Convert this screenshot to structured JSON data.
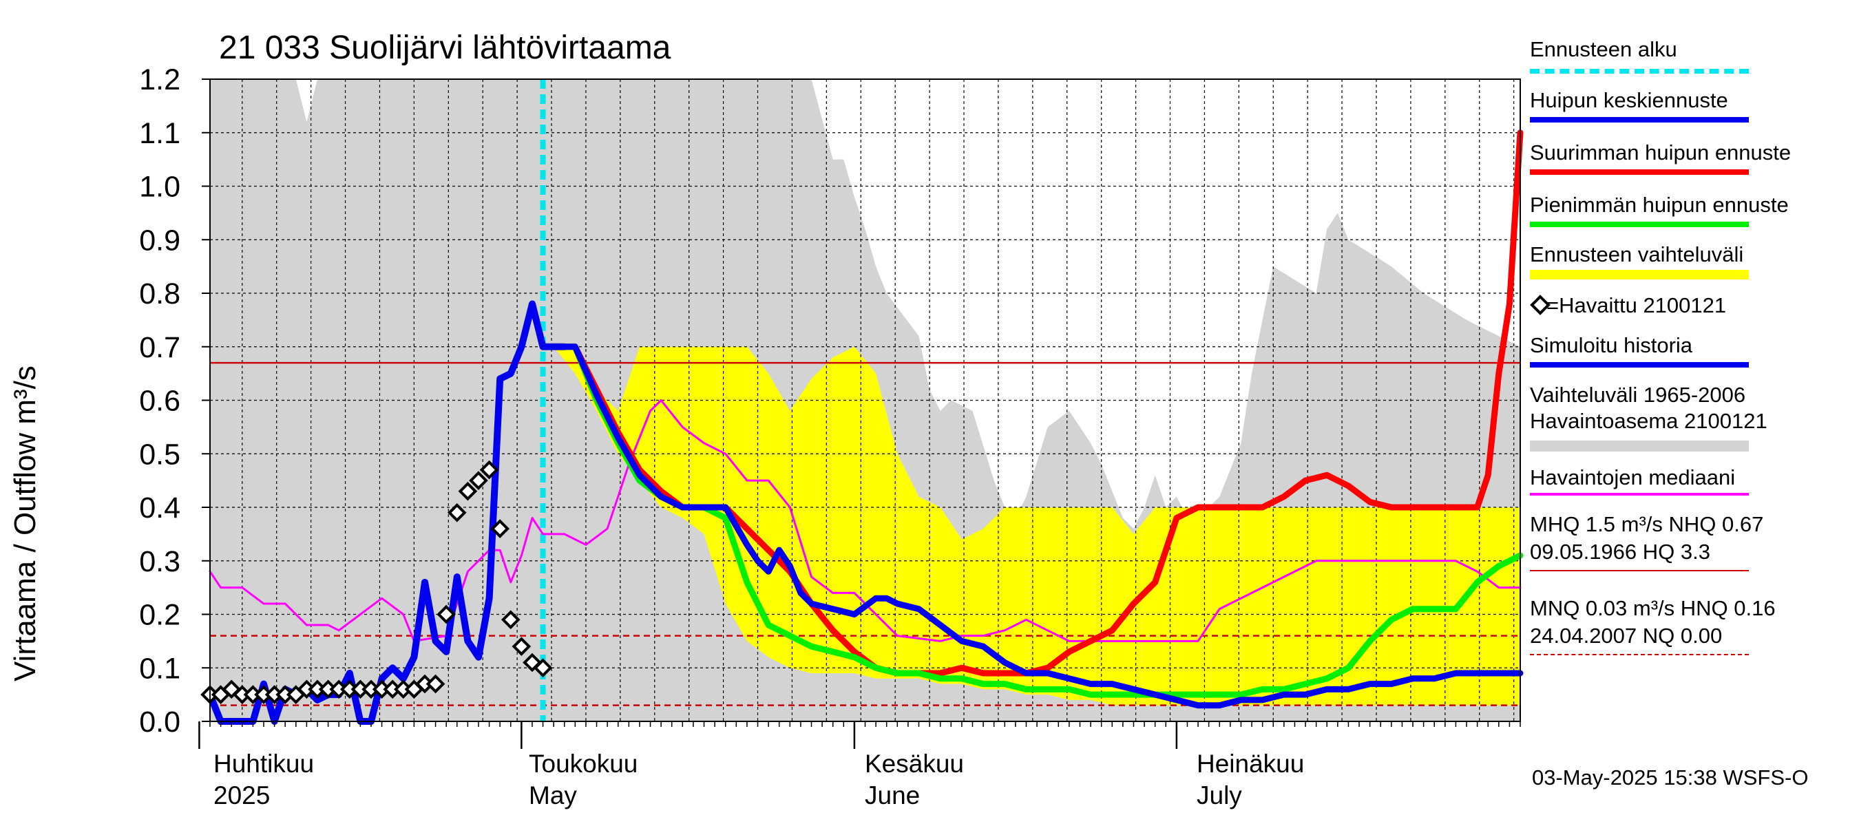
{
  "title": "21 033 Suolijärvi lähtövirtaama",
  "y_axis_label": "Virtaama / Outflow    m³/s",
  "footer": "03-May-2025 15:38 WSFS-O",
  "colors": {
    "grey_band": "#d3d3d3",
    "yellow_band": "#ffff00",
    "forecast_start": "#00e5ee",
    "mean_peak": "#0000ee",
    "max_peak": "#ff0000",
    "min_peak": "#00ee00",
    "median": "#ff00ff",
    "threshold": "#cc0000"
  },
  "legend": {
    "forecast_start": "Ennusteen alku",
    "mean_peak": "Huipun keskiennuste",
    "max_peak": "Suurimman huipun ennuste",
    "min_peak": "Pienimmän huipun ennuste",
    "forecast_range": "Ennusteen vaihteluväli",
    "observed": "=Havaittu 2100121",
    "simulated": "Simuloitu historia",
    "range_line1": "Vaihteluväli 1965-2006",
    "range_line2": " Havaintoasema 2100121",
    "median": "Havaintojen mediaani",
    "mhq_line1": "MHQ  1.5 m³/s NHQ 0.67",
    "mhq_line2": "09.05.1966 HQ  3.3",
    "mnq_line1": "MNQ 0.03 m³/s HNQ 0.16",
    "mnq_line2": "24.04.2007 NQ 0.00"
  },
  "months": [
    {
      "fi": "Huhtikuu",
      "en": "2025"
    },
    {
      "fi": "Toukokuu",
      "en": "May"
    },
    {
      "fi": "Kesäkuu",
      "en": "June"
    },
    {
      "fi": "Heinäkuu",
      "en": "July"
    }
  ],
  "chart_data": {
    "type": "line",
    "title": "21 033 Suolijärvi lähtövirtaama",
    "ylabel": "Virtaama / Outflow m³/s",
    "x_unit": "day of year 2025",
    "xlim": [
      92,
      214
    ],
    "ylim": [
      0,
      1.2
    ],
    "yticks": [
      0.0,
      0.1,
      0.2,
      0.3,
      0.4,
      0.5,
      0.6,
      0.7,
      0.8,
      0.9,
      1.0,
      1.1,
      1.2
    ],
    "ytick_labels": [
      "0.0",
      "0.1",
      "0.2",
      "0.3",
      "0.4",
      "0.5",
      "0.6",
      "0.7",
      "0.8",
      "0.9",
      "1.0",
      "1.1",
      "1.2"
    ],
    "month_starts": [
      91,
      121,
      152,
      182
    ],
    "forecast_start": 123,
    "hlines": [
      {
        "name": "NHQ",
        "value": 0.67,
        "style": "solid"
      },
      {
        "name": "HNQ",
        "value": 0.16,
        "style": "dashed"
      },
      {
        "name": "MNQ",
        "value": 0.03,
        "style": "dashed"
      }
    ],
    "hist_range": {
      "x": [
        92,
        97,
        100,
        101,
        102,
        105,
        106,
        107,
        112,
        113,
        114,
        115,
        116,
        117,
        118,
        119,
        120,
        121,
        122,
        123,
        124,
        127,
        132,
        136,
        137,
        141,
        148,
        150,
        151,
        152,
        153,
        154,
        155,
        158,
        159,
        160,
        161,
        163,
        165,
        166,
        167,
        168,
        170,
        172,
        174,
        175,
        177,
        178,
        179,
        180,
        181,
        182,
        183,
        185,
        186,
        188,
        189,
        190,
        191,
        195,
        196,
        197,
        198,
        202,
        205,
        209,
        214
      ],
      "lo": [
        0,
        0,
        0,
        0,
        0,
        0,
        0,
        0,
        0,
        0,
        0,
        0,
        0,
        0,
        0,
        0,
        0,
        0,
        0,
        0,
        0,
        0,
        0,
        0,
        0,
        0,
        0,
        0,
        0,
        0,
        0,
        0,
        0,
        0,
        0,
        0,
        0,
        0,
        0,
        0,
        0,
        0,
        0,
        0,
        0,
        0,
        0,
        0,
        0,
        0,
        0,
        0,
        0,
        0,
        0,
        0,
        0,
        0,
        0,
        0,
        0,
        0,
        0,
        0,
        0,
        0,
        0
      ],
      "hi": [
        1.2,
        1.2,
        1.2,
        1.12,
        1.2,
        1.2,
        1.2,
        1.2,
        1.2,
        1.2,
        1.2,
        1.2,
        1.2,
        1.2,
        1.2,
        1.2,
        1.2,
        1.2,
        1.2,
        1.2,
        1.2,
        1.2,
        1.2,
        1.2,
        1.2,
        1.2,
        1.2,
        1.05,
        1.05,
        0.98,
        0.92,
        0.85,
        0.8,
        0.72,
        0.62,
        0.58,
        0.6,
        0.58,
        0.45,
        0.4,
        0.38,
        0.42,
        0.55,
        0.58,
        0.52,
        0.48,
        0.38,
        0.36,
        0.4,
        0.46,
        0.4,
        0.42,
        0.38,
        0.4,
        0.42,
        0.52,
        0.65,
        0.75,
        0.85,
        0.8,
        0.92,
        0.95,
        0.9,
        0.85,
        0.8,
        0.75,
        0.7
      ]
    },
    "forecast_range": {
      "x": [
        123,
        124,
        126,
        128,
        130,
        132,
        134,
        136,
        138,
        140,
        142,
        144,
        146,
        148,
        150,
        152,
        154,
        156,
        158,
        160,
        162,
        164,
        166,
        168,
        170,
        172,
        174,
        176,
        178,
        180,
        182,
        184,
        186,
        188,
        190,
        192,
        194,
        196,
        198,
        200,
        202,
        204,
        206,
        208,
        210,
        212,
        214
      ],
      "lo": [
        0.7,
        0.7,
        0.65,
        0.58,
        0.5,
        0.45,
        0.4,
        0.38,
        0.35,
        0.22,
        0.15,
        0.12,
        0.1,
        0.09,
        0.09,
        0.09,
        0.08,
        0.08,
        0.08,
        0.07,
        0.07,
        0.06,
        0.06,
        0.05,
        0.05,
        0.04,
        0.04,
        0.03,
        0.03,
        0.03,
        0.03,
        0.03,
        0.03,
        0.03,
        0.03,
        0.03,
        0.03,
        0.03,
        0.03,
        0.03,
        0.03,
        0.03,
        0.03,
        0.03,
        0.03,
        0.03,
        0.03
      ],
      "hi": [
        0.7,
        0.7,
        0.7,
        0.62,
        0.58,
        0.7,
        0.7,
        0.7,
        0.7,
        0.7,
        0.7,
        0.65,
        0.58,
        0.64,
        0.68,
        0.7,
        0.65,
        0.5,
        0.42,
        0.4,
        0.34,
        0.36,
        0.4,
        0.4,
        0.4,
        0.4,
        0.4,
        0.4,
        0.35,
        0.4,
        0.4,
        0.4,
        0.4,
        0.4,
        0.4,
        0.4,
        0.4,
        0.4,
        0.4,
        0.4,
        0.4,
        0.4,
        0.4,
        0.4,
        0.4,
        0.4,
        0.4
      ]
    },
    "series": [
      {
        "name": "Havaintojen mediaani",
        "color": "#ff00ff",
        "width": 3,
        "x": [
          92,
          93,
          95,
          97,
          99,
          101,
          103,
          104,
          106,
          108,
          110,
          111,
          114,
          116,
          118,
          119,
          120,
          121,
          122,
          123,
          125,
          127,
          129,
          131,
          133,
          134,
          136,
          138,
          140,
          142,
          144,
          146,
          148,
          150,
          152,
          156,
          160,
          162,
          164,
          166,
          168,
          172,
          176,
          180,
          182,
          184,
          186,
          188,
          190,
          195,
          200,
          205,
          208,
          210,
          212,
          214
        ],
        "y": [
          0.28,
          0.25,
          0.25,
          0.22,
          0.22,
          0.18,
          0.18,
          0.17,
          0.2,
          0.23,
          0.2,
          0.15,
          0.16,
          0.28,
          0.32,
          0.32,
          0.26,
          0.31,
          0.38,
          0.35,
          0.35,
          0.33,
          0.36,
          0.48,
          0.58,
          0.6,
          0.55,
          0.52,
          0.5,
          0.45,
          0.45,
          0.4,
          0.27,
          0.24,
          0.24,
          0.16,
          0.15,
          0.16,
          0.16,
          0.17,
          0.19,
          0.15,
          0.15,
          0.15,
          0.15,
          0.15,
          0.21,
          0.23,
          0.25,
          0.3,
          0.3,
          0.3,
          0.3,
          0.28,
          0.25,
          0.25
        ]
      },
      {
        "name": "Simuloitu historia",
        "color": "#0000ee",
        "width": 10,
        "x": [
          92,
          93,
          94,
          95,
          96,
          97,
          98,
          99,
          100,
          101,
          102,
          103,
          104,
          105,
          106,
          107,
          108,
          109,
          110,
          111,
          112,
          113,
          114,
          115,
          116,
          117,
          118,
          119,
          120,
          121,
          122,
          123,
          124,
          125
        ],
        "y": [
          0.05,
          0.0,
          0.0,
          0.0,
          0.0,
          0.07,
          0.0,
          0.06,
          0.05,
          0.06,
          0.04,
          0.05,
          0.05,
          0.09,
          0.0,
          0.0,
          0.08,
          0.1,
          0.08,
          0.12,
          0.26,
          0.15,
          0.13,
          0.27,
          0.15,
          0.12,
          0.23,
          0.64,
          0.65,
          0.7,
          0.78,
          0.7,
          0.7,
          0.7
        ]
      },
      {
        "name": "Suurimman huipun ennuste",
        "color": "#ff0000",
        "width": 9,
        "x": [
          123,
          126,
          128,
          130,
          132,
          134,
          136,
          138,
          140,
          142,
          144,
          146,
          148,
          150,
          152,
          154,
          156,
          158,
          160,
          162,
          164,
          166,
          168,
          170,
          172,
          174,
          176,
          178,
          180,
          182,
          184,
          186,
          188,
          190,
          192,
          194,
          196,
          198,
          200,
          202,
          204,
          206,
          208,
          210,
          211,
          212,
          213,
          214
        ],
        "y": [
          0.7,
          0.7,
          0.62,
          0.54,
          0.47,
          0.43,
          0.4,
          0.4,
          0.4,
          0.36,
          0.32,
          0.28,
          0.22,
          0.17,
          0.13,
          0.1,
          0.09,
          0.09,
          0.09,
          0.1,
          0.09,
          0.09,
          0.09,
          0.1,
          0.13,
          0.15,
          0.17,
          0.22,
          0.26,
          0.38,
          0.4,
          0.4,
          0.4,
          0.4,
          0.42,
          0.45,
          0.46,
          0.44,
          0.41,
          0.4,
          0.4,
          0.4,
          0.4,
          0.4,
          0.46,
          0.65,
          0.78,
          1.1
        ]
      },
      {
        "name": "Pienimmän huipun ennuste",
        "color": "#00ee00",
        "width": 9,
        "x": [
          123,
          126,
          128,
          130,
          132,
          134,
          136,
          138,
          140,
          142,
          144,
          146,
          148,
          150,
          152,
          154,
          156,
          158,
          160,
          162,
          164,
          166,
          168,
          170,
          172,
          174,
          176,
          178,
          180,
          182,
          184,
          186,
          188,
          190,
          192,
          194,
          196,
          198,
          200,
          202,
          204,
          206,
          208,
          210,
          212,
          214
        ],
        "y": [
          0.7,
          0.7,
          0.6,
          0.52,
          0.45,
          0.42,
          0.4,
          0.4,
          0.38,
          0.26,
          0.18,
          0.16,
          0.14,
          0.13,
          0.12,
          0.1,
          0.09,
          0.09,
          0.08,
          0.08,
          0.07,
          0.07,
          0.06,
          0.06,
          0.06,
          0.05,
          0.05,
          0.05,
          0.05,
          0.05,
          0.05,
          0.05,
          0.05,
          0.06,
          0.06,
          0.07,
          0.08,
          0.1,
          0.15,
          0.19,
          0.21,
          0.21,
          0.21,
          0.26,
          0.29,
          0.31
        ]
      },
      {
        "name": "Huipun keskiennuste",
        "color": "#0000ee",
        "width": 9,
        "x": [
          123,
          126,
          128,
          130,
          132,
          134,
          136,
          138,
          140,
          142,
          143,
          144,
          145,
          146,
          147,
          148,
          150,
          152,
          154,
          155,
          156,
          158,
          160,
          162,
          164,
          166,
          168,
          170,
          172,
          174,
          176,
          178,
          180,
          182,
          184,
          186,
          188,
          190,
          192,
          194,
          196,
          198,
          200,
          202,
          204,
          206,
          208,
          210,
          212,
          214
        ],
        "y": [
          0.7,
          0.7,
          0.61,
          0.53,
          0.46,
          0.42,
          0.4,
          0.4,
          0.4,
          0.33,
          0.3,
          0.28,
          0.32,
          0.29,
          0.24,
          0.22,
          0.21,
          0.2,
          0.23,
          0.23,
          0.22,
          0.21,
          0.18,
          0.15,
          0.14,
          0.11,
          0.09,
          0.09,
          0.08,
          0.07,
          0.07,
          0.06,
          0.05,
          0.04,
          0.03,
          0.03,
          0.04,
          0.04,
          0.05,
          0.05,
          0.06,
          0.06,
          0.07,
          0.07,
          0.08,
          0.08,
          0.09,
          0.09,
          0.09,
          0.09
        ]
      }
    ],
    "observed": {
      "name": "Havaittu 2100121",
      "x": [
        92,
        93,
        94,
        95,
        96,
        97,
        98,
        99,
        100,
        101,
        102,
        103,
        104,
        105,
        106,
        107,
        108,
        109,
        110,
        111,
        112,
        113,
        114,
        115,
        116,
        117,
        118,
        119,
        120,
        121,
        122,
        123
      ],
      "y": [
        0.05,
        0.05,
        0.06,
        0.05,
        0.05,
        0.05,
        0.05,
        0.05,
        0.05,
        0.06,
        0.06,
        0.06,
        0.06,
        0.06,
        0.06,
        0.06,
        0.06,
        0.06,
        0.06,
        0.06,
        0.07,
        0.07,
        0.2,
        0.39,
        0.43,
        0.45,
        0.47,
        0.36,
        0.19,
        0.14,
        0.11,
        0.1
      ]
    }
  }
}
